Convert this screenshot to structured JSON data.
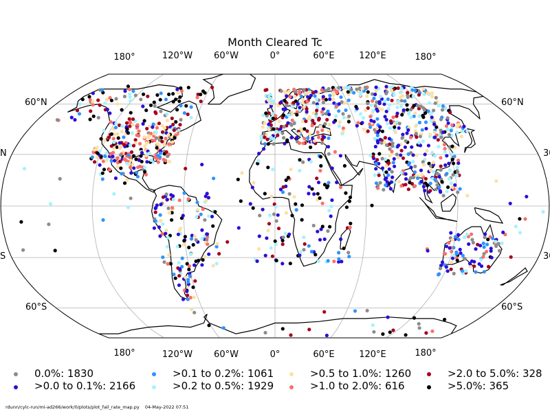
{
  "title": "Month Cleared Tc",
  "top_lon_labels": [
    "180°",
    "120°W",
    "60°W",
    "0°",
    "60°E",
    "120°E",
    "180°"
  ],
  "bottom_lon_labels": [
    "180°",
    "120°W",
    "60°W",
    "0°",
    "60°E",
    "120°E",
    "180°"
  ],
  "left_lat_labels": [
    "60°N",
    "N",
    "S",
    "60°S"
  ],
  "right_lat_labels": [
    "60°N",
    "30",
    "30",
    "60°S"
  ],
  "legend": [
    {
      "label": "0.0%: 1830",
      "color": "#8c8c8c"
    },
    {
      "label": ">0.0 to 0.1%: 2166",
      "color": "#2a0fd6"
    },
    {
      "label": ">0.1 to 0.2%: 1061",
      "color": "#2f93ff"
    },
    {
      "label": ">0.2 to 0.5%: 1929",
      "color": "#a5f2ff"
    },
    {
      "label": ">0.5 to 1.0%: 1260",
      "color": "#fde0a5"
    },
    {
      "label": ">1.0 to 2.0%: 616",
      "color": "#f8706a"
    },
    {
      "label": ">2.0 to 5.0%: 328",
      "color": "#a5001f"
    },
    {
      "label": ">5.0%: 365",
      "color": "#000000"
    }
  ],
  "footer": {
    "path": "rdunn/cylc-run/mi-ad266/work/0/plots/plot_fail_rate_map.py",
    "date": "04-May-2022 07:51"
  },
  "colors": {
    "gridline": "#b0b0b0",
    "coastline": "#000000",
    "background": "#ffffff"
  }
}
